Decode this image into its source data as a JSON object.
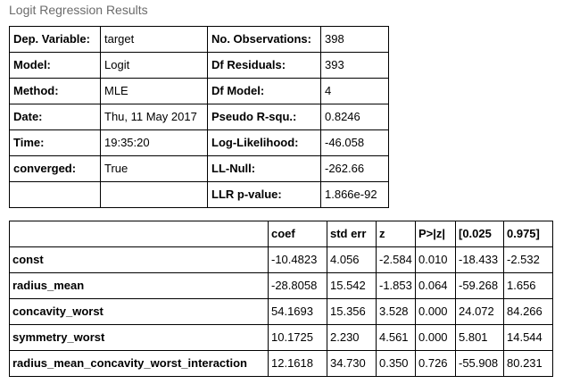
{
  "caption": "Logit Regression Results",
  "summary": {
    "rows": [
      [
        "Dep. Variable:",
        "target",
        "No. Observations:",
        "398"
      ],
      [
        "Model:",
        "Logit",
        "Df Residuals:",
        "393"
      ],
      [
        "Method:",
        "MLE",
        "Df Model:",
        "4"
      ],
      [
        "Date:",
        "Thu, 11 May 2017",
        "Pseudo R-squ.:",
        "0.8246"
      ],
      [
        "Time:",
        "19:35:20",
        "Log-Likelihood:",
        "-46.058"
      ],
      [
        "converged:",
        "True",
        "LL-Null:",
        "-262.66"
      ],
      [
        "",
        "",
        "LLR p-value:",
        "1.866e-92"
      ]
    ]
  },
  "coefficients": {
    "headers": [
      "",
      "coef",
      "std err",
      "z",
      "P>|z|",
      "[0.025",
      "0.975]"
    ],
    "rows": [
      [
        "const",
        "-10.4823",
        "4.056",
        "-2.584",
        "0.010",
        "-18.433",
        "-2.532"
      ],
      [
        "radius_mean",
        "-28.8058",
        "15.542",
        "-1.853",
        "0.064",
        "-59.268",
        "1.656"
      ],
      [
        "concavity_worst",
        "54.1693",
        "15.356",
        "3.528",
        "0.000",
        "24.072",
        "84.266"
      ],
      [
        "symmetry_worst",
        "10.1725",
        "2.230",
        "4.561",
        "0.000",
        "5.801",
        "14.544"
      ],
      [
        "radius_mean_concavity_worst_interaction",
        "12.1618",
        "34.730",
        "0.350",
        "0.726",
        "-55.908",
        "80.231"
      ]
    ]
  }
}
